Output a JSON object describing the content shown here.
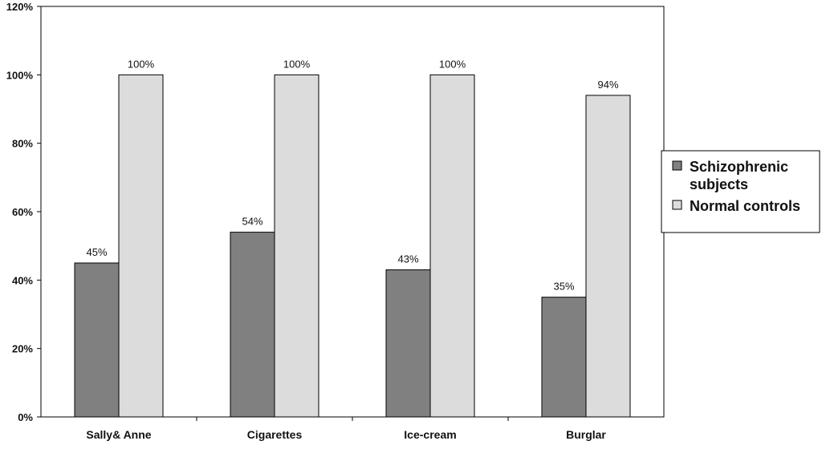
{
  "chart_data": {
    "type": "bar",
    "categories": [
      "Sally& Anne",
      "Cigarettes",
      "Ice-cream",
      "Burglar"
    ],
    "series": [
      {
        "name": "Schizophrenic subjects",
        "values": [
          45,
          54,
          43,
          35
        ],
        "labels": [
          "45%",
          "54%",
          "43%",
          "35%"
        ],
        "color": "#808080"
      },
      {
        "name": "Normal controls",
        "values": [
          100,
          100,
          100,
          94
        ],
        "labels": [
          "100%",
          "100%",
          "100%",
          "94%"
        ],
        "color": "#dcdcdc"
      }
    ],
    "ylim": [
      0,
      120
    ],
    "y_ticks": [
      0,
      20,
      40,
      60,
      80,
      100,
      120
    ],
    "y_tick_labels": [
      "0%",
      "20%",
      "40%",
      "60%",
      "80%",
      "100%",
      "120%"
    ],
    "legend_lines": [
      [
        "Schizophrenic",
        "subjects"
      ],
      [
        "Normal controls"
      ]
    ],
    "legend_position": "right",
    "grid": false,
    "title": "",
    "xlabel": "",
    "ylabel": ""
  }
}
